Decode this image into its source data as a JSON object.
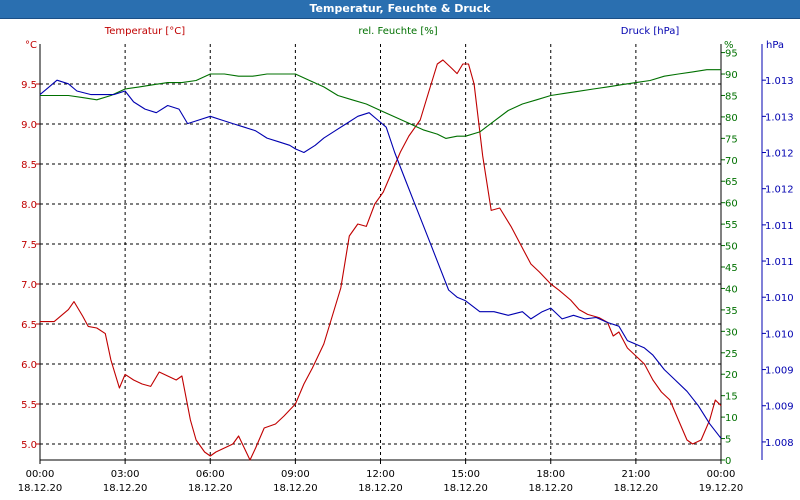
{
  "window": {
    "title": "Temperatur, Feuchte & Druck"
  },
  "colors": {
    "temperature": "#c00000",
    "humidity": "#007000",
    "pressure": "#0000b0",
    "grid": "#000000",
    "axis": "#000000"
  },
  "chart_data": {
    "type": "line",
    "title": "Temperatur, Feuchte & Druck",
    "x": {
      "label": "",
      "range_hours": [
        0,
        24
      ],
      "ticks": [
        {
          "hour": 0,
          "time": "00:00",
          "date": "18.12.20"
        },
        {
          "hour": 3,
          "time": "03:00",
          "date": "18.12.20"
        },
        {
          "hour": 6,
          "time": "06:00",
          "date": "18.12.20"
        },
        {
          "hour": 9,
          "time": "09:00",
          "date": "18.12.20"
        },
        {
          "hour": 12,
          "time": "12:00",
          "date": "18.12.20"
        },
        {
          "hour": 15,
          "time": "15:00",
          "date": "18.12.20"
        },
        {
          "hour": 18,
          "time": "18:00",
          "date": "18.12.20"
        },
        {
          "hour": 21,
          "time": "21:00",
          "date": "18.12.20"
        },
        {
          "hour": 24,
          "time": "00:00",
          "date": "19.12.20"
        }
      ]
    },
    "axes": {
      "temperature": {
        "unit": "°C",
        "label": "Temperatur [°C]",
        "range": [
          4.8,
          10.0
        ],
        "ticks": [
          "5.0",
          "5.5",
          "6.0",
          "6.5",
          "7.0",
          "7.5",
          "8.0",
          "8.5",
          "9.0",
          "9.5"
        ],
        "tick_values": [
          5.0,
          5.5,
          6.0,
          6.5,
          7.0,
          7.5,
          8.0,
          8.5,
          9.0,
          9.5
        ]
      },
      "humidity": {
        "unit": "%",
        "label": "rel. Feuchte [%]",
        "range": [
          0,
          97
        ],
        "ticks": [
          "0",
          "5",
          "10",
          "15",
          "20",
          "25",
          "30",
          "35",
          "40",
          "45",
          "50",
          "55",
          "60",
          "65",
          "70",
          "75",
          "80",
          "85",
          "90",
          "95"
        ],
        "tick_values": [
          0,
          5,
          10,
          15,
          20,
          25,
          30,
          35,
          40,
          45,
          50,
          55,
          60,
          65,
          70,
          75,
          80,
          85,
          90,
          95
        ]
      },
      "pressure": {
        "unit": "hPa",
        "label": "Druck [hPa]",
        "range": [
          1007.75,
          1013.5
        ],
        "ticks": [
          "1.008",
          "1.009",
          "1.009",
          "1.010",
          "1.010",
          "1.011",
          "1.011",
          "1.012",
          "1.012",
          "1.013",
          "1.013"
        ],
        "tick_values": [
          1008.0,
          1008.5,
          1009.0,
          1009.5,
          1010.0,
          1010.5,
          1011.0,
          1011.5,
          1012.0,
          1012.5,
          1013.0
        ]
      }
    },
    "series": [
      {
        "name": "Temperatur [°C]",
        "axis": "temperature",
        "points": [
          [
            0.0,
            6.53
          ],
          [
            0.5,
            6.53
          ],
          [
            1.0,
            6.68
          ],
          [
            1.2,
            6.78
          ],
          [
            1.5,
            6.6
          ],
          [
            1.7,
            6.47
          ],
          [
            2.0,
            6.45
          ],
          [
            2.3,
            6.38
          ],
          [
            2.5,
            6.05
          ],
          [
            2.8,
            5.7
          ],
          [
            3.0,
            5.87
          ],
          [
            3.3,
            5.8
          ],
          [
            3.6,
            5.75
          ],
          [
            3.9,
            5.72
          ],
          [
            4.2,
            5.9
          ],
          [
            4.5,
            5.85
          ],
          [
            4.8,
            5.8
          ],
          [
            5.0,
            5.85
          ],
          [
            5.3,
            5.3
          ],
          [
            5.5,
            5.05
          ],
          [
            5.8,
            4.9
          ],
          [
            6.0,
            4.85
          ],
          [
            6.2,
            4.9
          ],
          [
            6.5,
            4.95
          ],
          [
            6.8,
            5.0
          ],
          [
            7.0,
            5.1
          ],
          [
            7.2,
            4.95
          ],
          [
            7.4,
            4.8
          ],
          [
            7.6,
            4.95
          ],
          [
            7.9,
            5.2
          ],
          [
            8.3,
            5.25
          ],
          [
            8.6,
            5.35
          ],
          [
            9.0,
            5.5
          ],
          [
            9.3,
            5.75
          ],
          [
            9.6,
            5.95
          ],
          [
            10.0,
            6.25
          ],
          [
            10.3,
            6.6
          ],
          [
            10.6,
            6.95
          ],
          [
            10.9,
            7.6
          ],
          [
            11.2,
            7.75
          ],
          [
            11.5,
            7.72
          ],
          [
            11.8,
            8.0
          ],
          [
            12.1,
            8.15
          ],
          [
            12.4,
            8.4
          ],
          [
            12.7,
            8.65
          ],
          [
            13.0,
            8.85
          ],
          [
            13.4,
            9.05
          ],
          [
            13.7,
            9.4
          ],
          [
            14.0,
            9.75
          ],
          [
            14.2,
            9.8
          ],
          [
            14.5,
            9.7
          ],
          [
            14.7,
            9.63
          ],
          [
            14.9,
            9.75
          ],
          [
            15.1,
            9.75
          ],
          [
            15.3,
            9.5
          ],
          [
            15.6,
            8.6
          ],
          [
            15.9,
            7.92
          ],
          [
            16.2,
            7.95
          ],
          [
            16.6,
            7.72
          ],
          [
            17.0,
            7.45
          ],
          [
            17.3,
            7.25
          ],
          [
            17.6,
            7.15
          ],
          [
            18.0,
            7.0
          ],
          [
            18.3,
            6.92
          ],
          [
            18.7,
            6.8
          ],
          [
            19.0,
            6.68
          ],
          [
            19.3,
            6.62
          ],
          [
            19.7,
            6.58
          ],
          [
            20.0,
            6.52
          ],
          [
            20.2,
            6.35
          ],
          [
            20.4,
            6.4
          ],
          [
            20.7,
            6.2
          ],
          [
            21.0,
            6.1
          ],
          [
            21.3,
            6.0
          ],
          [
            21.6,
            5.8
          ],
          [
            21.9,
            5.65
          ],
          [
            22.2,
            5.55
          ],
          [
            22.5,
            5.3
          ],
          [
            22.8,
            5.05
          ],
          [
            23.0,
            5.0
          ],
          [
            23.3,
            5.05
          ],
          [
            23.6,
            5.3
          ],
          [
            23.8,
            5.55
          ],
          [
            24.0,
            5.48
          ]
        ]
      },
      {
        "name": "rel. Feuchte [%]",
        "axis": "humidity",
        "points": [
          [
            0.0,
            85.0
          ],
          [
            1.0,
            85.0
          ],
          [
            1.5,
            84.5
          ],
          [
            2.0,
            84.0
          ],
          [
            2.5,
            85.0
          ],
          [
            3.0,
            86.5
          ],
          [
            3.5,
            87.0
          ],
          [
            4.0,
            87.5
          ],
          [
            4.5,
            88.0
          ],
          [
            5.0,
            88.0
          ],
          [
            5.5,
            88.5
          ],
          [
            6.0,
            90.0
          ],
          [
            6.5,
            90.0
          ],
          [
            7.0,
            89.5
          ],
          [
            7.5,
            89.5
          ],
          [
            8.0,
            90.0
          ],
          [
            8.5,
            90.0
          ],
          [
            9.0,
            90.0
          ],
          [
            9.5,
            88.5
          ],
          [
            10.0,
            87.0
          ],
          [
            10.5,
            85.0
          ],
          [
            11.0,
            84.0
          ],
          [
            11.5,
            83.0
          ],
          [
            12.0,
            81.5
          ],
          [
            12.5,
            80.0
          ],
          [
            13.0,
            78.5
          ],
          [
            13.5,
            77.0
          ],
          [
            14.0,
            76.0
          ],
          [
            14.3,
            75.0
          ],
          [
            14.7,
            75.5
          ],
          [
            15.0,
            75.5
          ],
          [
            15.5,
            76.5
          ],
          [
            16.0,
            79.0
          ],
          [
            16.5,
            81.5
          ],
          [
            17.0,
            83.0
          ],
          [
            17.5,
            84.0
          ],
          [
            18.0,
            85.0
          ],
          [
            18.5,
            85.5
          ],
          [
            19.0,
            86.0
          ],
          [
            19.5,
            86.5
          ],
          [
            20.0,
            87.0
          ],
          [
            20.5,
            87.5
          ],
          [
            21.0,
            88.0
          ],
          [
            21.5,
            88.5
          ],
          [
            22.0,
            89.5
          ],
          [
            22.5,
            90.0
          ],
          [
            23.0,
            90.5
          ],
          [
            23.5,
            91.0
          ],
          [
            24.0,
            91.0
          ]
        ]
      },
      {
        "name": "Druck [hPa]",
        "axis": "pressure",
        "points": [
          [
            0.0,
            1012.8
          ],
          [
            0.3,
            1012.9
          ],
          [
            0.6,
            1013.0
          ],
          [
            1.0,
            1012.95
          ],
          [
            1.3,
            1012.85
          ],
          [
            1.8,
            1012.8
          ],
          [
            2.2,
            1012.8
          ],
          [
            2.6,
            1012.8
          ],
          [
            3.0,
            1012.85
          ],
          [
            3.3,
            1012.7
          ],
          [
            3.7,
            1012.6
          ],
          [
            4.1,
            1012.55
          ],
          [
            4.5,
            1012.65
          ],
          [
            4.9,
            1012.6
          ],
          [
            5.2,
            1012.4
          ],
          [
            5.6,
            1012.45
          ],
          [
            6.0,
            1012.5
          ],
          [
            6.4,
            1012.45
          ],
          [
            6.8,
            1012.4
          ],
          [
            7.2,
            1012.35
          ],
          [
            7.6,
            1012.3
          ],
          [
            8.0,
            1012.2
          ],
          [
            8.4,
            1012.15
          ],
          [
            8.8,
            1012.1
          ],
          [
            9.0,
            1012.05
          ],
          [
            9.3,
            1012.0
          ],
          [
            9.7,
            1012.1
          ],
          [
            10.0,
            1012.2
          ],
          [
            10.4,
            1012.3
          ],
          [
            10.8,
            1012.4
          ],
          [
            11.2,
            1012.5
          ],
          [
            11.6,
            1012.55
          ],
          [
            11.9,
            1012.45
          ],
          [
            12.2,
            1012.35
          ],
          [
            12.5,
            1012.0
          ],
          [
            12.9,
            1011.6
          ],
          [
            13.2,
            1011.3
          ],
          [
            13.5,
            1011.0
          ],
          [
            13.8,
            1010.7
          ],
          [
            14.1,
            1010.4
          ],
          [
            14.4,
            1010.1
          ],
          [
            14.7,
            1010.0
          ],
          [
            15.0,
            1009.95
          ],
          [
            15.5,
            1009.8
          ],
          [
            16.0,
            1009.8
          ],
          [
            16.5,
            1009.75
          ],
          [
            17.0,
            1009.8
          ],
          [
            17.3,
            1009.7
          ],
          [
            17.7,
            1009.8
          ],
          [
            18.0,
            1009.85
          ],
          [
            18.4,
            1009.7
          ],
          [
            18.8,
            1009.75
          ],
          [
            19.2,
            1009.7
          ],
          [
            19.6,
            1009.72
          ],
          [
            20.0,
            1009.65
          ],
          [
            20.4,
            1009.6
          ],
          [
            20.7,
            1009.4
          ],
          [
            21.0,
            1009.35
          ],
          [
            21.3,
            1009.3
          ],
          [
            21.6,
            1009.2
          ],
          [
            22.0,
            1009.0
          ],
          [
            22.4,
            1008.85
          ],
          [
            22.8,
            1008.7
          ],
          [
            23.2,
            1008.5
          ],
          [
            23.6,
            1008.25
          ],
          [
            24.0,
            1008.05
          ]
        ]
      }
    ],
    "grid": true,
    "legend": "top (axis titles)"
  }
}
